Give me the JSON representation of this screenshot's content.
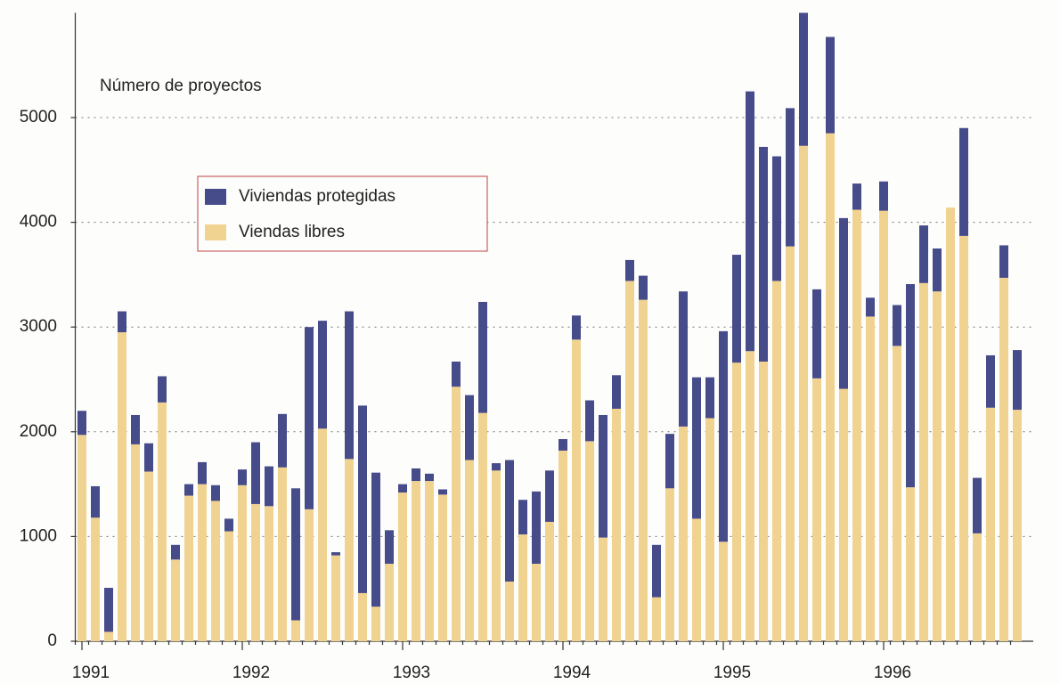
{
  "chart_data": {
    "type": "stacked_bar",
    "y_label": "Número de proyectos",
    "categories": [
      "1991",
      null,
      null,
      null,
      null,
      null,
      null,
      null,
      null,
      null,
      null,
      null,
      "1992",
      null,
      null,
      null,
      null,
      null,
      null,
      null,
      null,
      null,
      null,
      null,
      "1993",
      null,
      null,
      null,
      null,
      null,
      null,
      null,
      null,
      null,
      null,
      null,
      "1994",
      null,
      null,
      null,
      null,
      null,
      null,
      null,
      null,
      null,
      null,
      null,
      "1995",
      null,
      null,
      null,
      null,
      null,
      null,
      null,
      null,
      null,
      null,
      null,
      "1996",
      null,
      null,
      null,
      null,
      null,
      null,
      null,
      null,
      null,
      null
    ],
    "series": [
      {
        "name": "Viendas libres",
        "color": "#f1d391",
        "values": [
          1970,
          1180,
          90,
          2950,
          1880,
          1620,
          2280,
          780,
          1390,
          1500,
          1340,
          1050,
          1490,
          1310,
          1290,
          1660,
          200,
          1260,
          2030,
          820,
          1740,
          460,
          330,
          740,
          1420,
          1530,
          1530,
          1400,
          2430,
          1730,
          2180,
          1630,
          570,
          1020,
          740,
          1140,
          1820,
          2880,
          1910,
          990,
          2220,
          3440,
          3260,
          420,
          1460,
          2050,
          1170,
          2130,
          950,
          2660,
          2770,
          2670,
          3440,
          3770,
          4730,
          2510,
          4850,
          2410,
          4120,
          3100,
          4110,
          2820,
          1470,
          3420,
          3340,
          4140,
          3870,
          1030,
          2230,
          3470,
          2210
        ]
      },
      {
        "name": "Viviendas protegidas",
        "color": "#464b8a",
        "values": [
          230,
          300,
          420,
          200,
          280,
          270,
          250,
          140,
          110,
          210,
          150,
          120,
          150,
          590,
          380,
          510,
          1260,
          1740,
          1030,
          30,
          1410,
          1790,
          1280,
          320,
          80,
          120,
          70,
          50,
          240,
          620,
          1060,
          70,
          1160,
          330,
          690,
          490,
          110,
          230,
          390,
          1170,
          320,
          200,
          230,
          500,
          520,
          1290,
          1350,
          390,
          2010,
          1030,
          2480,
          2050,
          1190,
          1320,
          1270,
          850,
          920,
          1630,
          250,
          180,
          280,
          390,
          1940,
          550,
          410,
          0,
          1030,
          530,
          500,
          310,
          570
        ]
      }
    ],
    "ylim": [
      0,
      6000
    ],
    "yticks": [
      0,
      1000,
      2000,
      3000,
      4000,
      5000
    ],
    "grid": true
  }
}
